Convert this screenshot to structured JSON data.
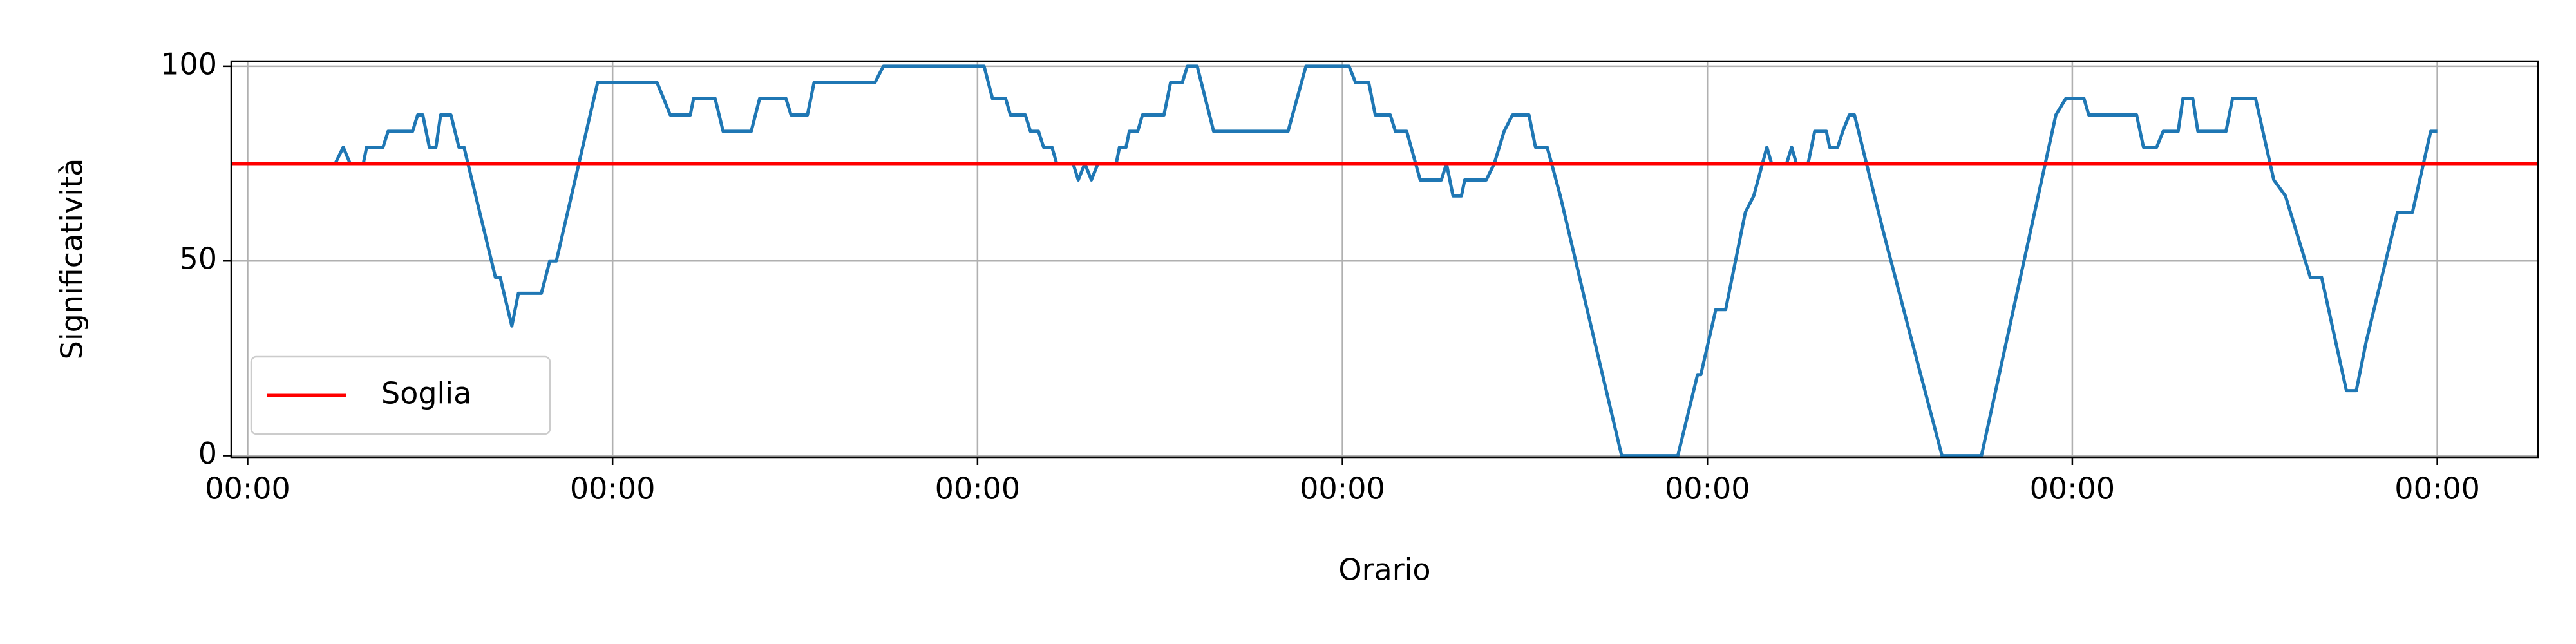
{
  "chart_data": {
    "type": "line",
    "x_label": "Orario",
    "y_label": "Significatività",
    "x": [
      0.24,
      0.262,
      0.281,
      0.317,
      0.326,
      0.371,
      0.385,
      0.452,
      0.466,
      0.48,
      0.498,
      0.516,
      0.529,
      0.557,
      0.579,
      0.593,
      0.679,
      0.692,
      0.724,
      0.742,
      0.805,
      0.828,
      0.846,
      0.959,
      1.122,
      1.14,
      1.158,
      1.213,
      1.222,
      1.281,
      1.303,
      1.38,
      1.403,
      1.475,
      1.489,
      1.534,
      1.552,
      1.719,
      1.742,
      2.018,
      2.041,
      2.077,
      2.09,
      2.131,
      2.145,
      2.167,
      2.181,
      2.204,
      2.217,
      2.262,
      2.276,
      2.294,
      2.312,
      2.33,
      2.38,
      2.389,
      2.407,
      2.416,
      2.439,
      2.452,
      2.511,
      2.529,
      2.561,
      2.575,
      2.602,
      2.647,
      2.851,
      2.9,
      3.018,
      3.036,
      3.072,
      3.09,
      3.131,
      3.145,
      3.176,
      3.213,
      3.271,
      3.285,
      3.303,
      3.326,
      3.335,
      3.394,
      3.416,
      3.443,
      3.466,
      3.511,
      3.529,
      3.561,
      3.597,
      3.765,
      3.919,
      3.973,
      3.982,
      4.023,
      4.05,
      4.104,
      4.127,
      4.163,
      4.176,
      4.217,
      4.231,
      4.244,
      4.276,
      4.294,
      4.326,
      4.335,
      4.357,
      4.371,
      4.389,
      4.403,
      4.48,
      4.561,
      4.643,
      4.751,
      4.955,
      4.982,
      5.032,
      5.045,
      5.176,
      5.195,
      5.231,
      5.249,
      5.29,
      5.303,
      5.33,
      5.344,
      5.421,
      5.439,
      5.502,
      5.552,
      5.584,
      5.652,
      5.683,
      5.751,
      5.778,
      5.805,
      5.891,
      5.932,
      5.982,
      6.0
    ],
    "series": [
      {
        "color": "#1f77b4",
        "values": [
          75,
          79.2,
          75,
          75,
          79.2,
          79.2,
          83.3,
          83.3,
          87.5,
          87.5,
          79.2,
          79.2,
          87.5,
          87.5,
          79.2,
          79.2,
          45.8,
          45.8,
          33.3,
          41.7,
          41.7,
          50,
          50,
          95.8,
          95.8,
          91.7,
          87.5,
          87.5,
          91.7,
          91.7,
          83.3,
          83.3,
          91.7,
          91.7,
          87.5,
          87.5,
          95.8,
          95.8,
          100,
          100,
          91.7,
          91.7,
          87.5,
          87.5,
          83.3,
          83.3,
          79.2,
          79.2,
          75,
          75,
          70.8,
          75,
          70.8,
          75,
          75,
          79.2,
          79.2,
          83.3,
          83.3,
          87.5,
          87.5,
          95.8,
          95.8,
          100,
          100,
          83.3,
          83.3,
          100,
          100,
          95.8,
          95.8,
          87.5,
          87.5,
          83.3,
          83.3,
          70.8,
          70.8,
          75,
          66.7,
          66.7,
          70.8,
          70.8,
          75,
          83.3,
          87.5,
          87.5,
          79.2,
          79.2,
          66.7,
          0,
          0,
          20.8,
          20.8,
          37.5,
          37.5,
          62.5,
          66.7,
          79.2,
          75,
          75,
          79.2,
          75,
          75,
          83.3,
          83.3,
          79.2,
          79.2,
          83.3,
          87.5,
          87.5,
          58.3,
          29.2,
          0,
          0,
          87.5,
          91.7,
          91.7,
          87.5,
          87.5,
          79.2,
          79.2,
          83.3,
          83.3,
          91.7,
          91.7,
          83.3,
          83.3,
          91.7,
          91.7,
          70.8,
          66.7,
          45.8,
          45.8,
          16.7,
          16.7,
          29.2,
          62.5,
          62.5,
          83.3,
          83.3
        ]
      }
    ],
    "hlines": [
      {
        "name": "Soglia",
        "value": 75,
        "color": "#ff0000"
      }
    ],
    "xlim": [
      -0.045,
      6.276
    ],
    "ylim": [
      -0.4,
      101.3
    ],
    "xticks": [
      {
        "value": 0,
        "label": "00:00"
      },
      {
        "value": 1,
        "label": "00:00"
      },
      {
        "value": 2,
        "label": "00:00"
      },
      {
        "value": 3,
        "label": "00:00"
      },
      {
        "value": 4,
        "label": "00:00"
      },
      {
        "value": 5,
        "label": "00:00"
      },
      {
        "value": 6,
        "label": "00:00"
      }
    ],
    "yticks": [
      0,
      50,
      100
    ],
    "grid": true,
    "legend_position": "lower left"
  }
}
